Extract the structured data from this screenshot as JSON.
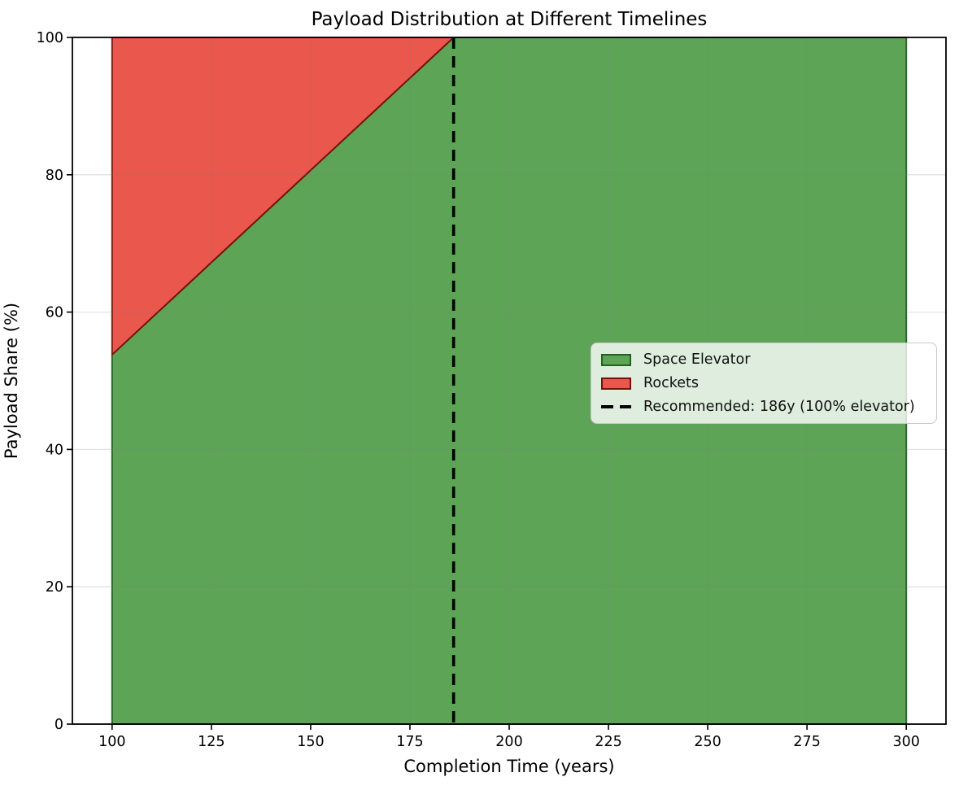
{
  "figure": {
    "background": "#ffffff"
  },
  "chart_data": {
    "type": "area",
    "stacked": true,
    "title": "Payload Distribution at Different Timelines",
    "xlabel": "Completion Time (years)",
    "ylabel": "Payload Share (%)",
    "xlim": [
      90,
      310
    ],
    "ylim": [
      0,
      100
    ],
    "x_ticks": [
      100,
      125,
      150,
      175,
      200,
      225,
      250,
      275,
      300
    ],
    "y_ticks": [
      0,
      20,
      40,
      60,
      80,
      100
    ],
    "grid": true,
    "x": [
      100,
      186,
      300
    ],
    "series": [
      {
        "name": "Space Elevator",
        "values": [
          53.8,
          100,
          100
        ],
        "fill": "#5da456",
        "edge": "#1e641e"
      },
      {
        "name": "Rockets",
        "values": [
          46.2,
          0,
          0
        ],
        "fill": "#e9574d",
        "edge": "#7b100c"
      }
    ],
    "recommended_line": {
      "x": 186,
      "label": "Recommended: 186y (100% elevator)",
      "color": "#000000",
      "style": "dashed"
    },
    "legend": {
      "position": "center-right"
    }
  }
}
